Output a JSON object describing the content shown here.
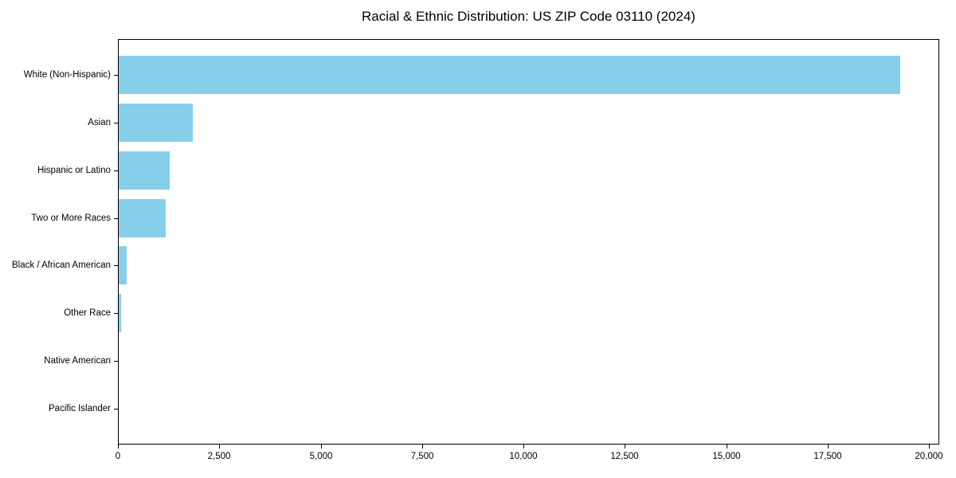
{
  "chart_data": {
    "type": "bar",
    "orientation": "horizontal",
    "title": "Racial & Ethnic Distribution: US ZIP Code 03110 (2024)",
    "categories": [
      "White (Non-Hispanic)",
      "Asian",
      "Hispanic or Latino",
      "Two or More Races",
      "Black / African American",
      "Other Race",
      "Native American",
      "Pacific Islander"
    ],
    "values": [
      19270,
      1825,
      1250,
      1150,
      195,
      60,
      0,
      0
    ],
    "xlabel": "",
    "ylabel": "",
    "xlim": [
      0,
      20250
    ],
    "x_ticks": [
      0,
      2500,
      5000,
      7500,
      10000,
      12500,
      15000,
      17500,
      20000
    ],
    "x_tick_labels": [
      "0",
      "2,500",
      "5,000",
      "7,500",
      "10,000",
      "12,500",
      "15,000",
      "17,500",
      "20,000"
    ],
    "bar_color": "#87CEEB",
    "frame_color": "#000000",
    "background_color": "#ffffff",
    "grid": false,
    "legend": null
  }
}
